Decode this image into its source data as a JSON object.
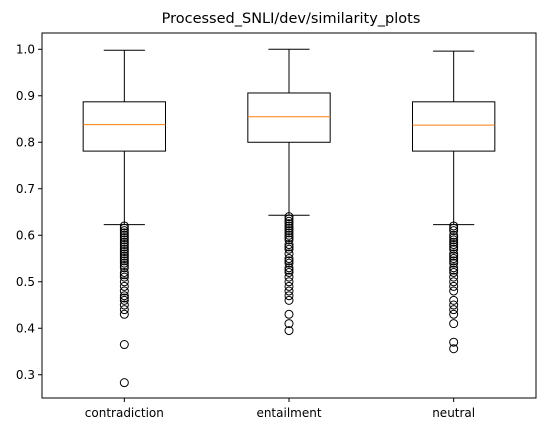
{
  "chart_data": {
    "type": "boxplot",
    "title": "Processed_SNLI/dev/similarity_plots",
    "xlabel": "",
    "ylabel": "",
    "ylim": [
      0.25,
      1.035
    ],
    "yticks": [
      0.3,
      0.4,
      0.5,
      0.6,
      0.7,
      0.8,
      0.9,
      1.0
    ],
    "ytick_labels": [
      "0.3",
      "0.4",
      "0.5",
      "0.6",
      "0.7",
      "0.8",
      "0.9",
      "1.0"
    ],
    "grid": false,
    "categories": [
      "contradiction",
      "entailment",
      "neutral"
    ],
    "boxes": [
      {
        "name": "contradiction",
        "whisker_low": 0.623,
        "q1": 0.781,
        "median": 0.838,
        "q3": 0.887,
        "whisker_high": 0.998,
        "outliers": [
          0.62,
          0.615,
          0.61,
          0.605,
          0.6,
          0.595,
          0.59,
          0.585,
          0.58,
          0.575,
          0.57,
          0.565,
          0.56,
          0.555,
          0.55,
          0.545,
          0.54,
          0.535,
          0.53,
          0.52,
          0.515,
          0.51,
          0.5,
          0.49,
          0.48,
          0.47,
          0.465,
          0.46,
          0.45,
          0.44,
          0.43,
          0.365,
          0.283
        ]
      },
      {
        "name": "entailment",
        "whisker_low": 0.643,
        "q1": 0.8,
        "median": 0.855,
        "q3": 0.906,
        "whisker_high": 1.0,
        "outliers": [
          0.64,
          0.635,
          0.63,
          0.625,
          0.62,
          0.615,
          0.61,
          0.605,
          0.6,
          0.595,
          0.59,
          0.58,
          0.575,
          0.57,
          0.56,
          0.55,
          0.545,
          0.54,
          0.53,
          0.525,
          0.52,
          0.51,
          0.5,
          0.49,
          0.48,
          0.47,
          0.46,
          0.43,
          0.41,
          0.395
        ]
      },
      {
        "name": "neutral",
        "whisker_low": 0.623,
        "q1": 0.781,
        "median": 0.837,
        "q3": 0.887,
        "whisker_high": 0.996,
        "outliers": [
          0.62,
          0.615,
          0.61,
          0.6,
          0.595,
          0.59,
          0.585,
          0.58,
          0.575,
          0.57,
          0.56,
          0.555,
          0.55,
          0.545,
          0.54,
          0.53,
          0.525,
          0.52,
          0.51,
          0.5,
          0.49,
          0.48,
          0.46,
          0.45,
          0.44,
          0.43,
          0.41,
          0.37,
          0.356
        ]
      }
    ],
    "colors": {
      "box": "#000000",
      "median": "#ff7f0e",
      "background": "#ffffff"
    }
  }
}
